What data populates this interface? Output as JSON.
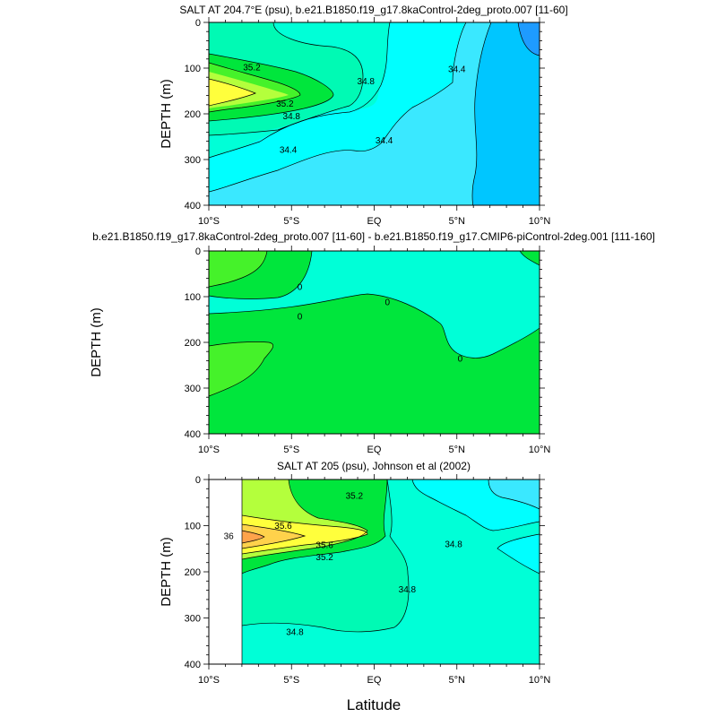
{
  "chart_data": [
    {
      "type": "contour",
      "title": "SALT AT 204.7°E (psu), b.e21.B1850.f19_g17.8kaControl-2deg_proto.007 [11-60]",
      "ylabel": "DEPTH (m)",
      "xlabel": "",
      "x_ticks": [
        "10°S",
        "5°S",
        "EQ",
        "5°N",
        "10°N"
      ],
      "y_ticks": [
        "0",
        "100",
        "200",
        "300",
        "400"
      ],
      "xlim": [
        -10,
        10
      ],
      "ylim": [
        0,
        400
      ],
      "contour_labels": [
        {
          "text": "35.2",
          "lat": -7.4,
          "depth": 98
        },
        {
          "text": "35.2",
          "lat": -5.4,
          "depth": 177
        },
        {
          "text": "34.8",
          "lat": -5.0,
          "depth": 205
        },
        {
          "text": "34.8",
          "lat": -0.5,
          "depth": 128
        },
        {
          "text": "34.4",
          "lat": -5.2,
          "depth": 278
        },
        {
          "text": "34.4",
          "lat": 0.6,
          "depth": 258
        },
        {
          "text": "34.4",
          "lat": 5.0,
          "depth": 102
        }
      ]
    },
    {
      "type": "contour",
      "title": "b.e21.B1850.f19_g17.8kaControl-2deg_proto.007 [11-60] - b.e21.B1850.f19_g17.CMIP6-piControl-2deg.001 [111-160]",
      "ylabel": "DEPTH (m)",
      "xlabel": "",
      "x_ticks": [
        "10°S",
        "5°S",
        "EQ",
        "5°N",
        "10°N"
      ],
      "y_ticks": [
        "0",
        "100",
        "200",
        "300",
        "400"
      ],
      "xlim": [
        -10,
        10
      ],
      "ylim": [
        0,
        400
      ],
      "contour_labels": [
        {
          "text": "0",
          "lat": -4.5,
          "depth": 78
        },
        {
          "text": "0",
          "lat": -4.5,
          "depth": 143
        },
        {
          "text": "0",
          "lat": 0.8,
          "depth": 112
        },
        {
          "text": "0",
          "lat": 5.2,
          "depth": 235
        }
      ]
    },
    {
      "type": "contour",
      "title": "SALT AT 205 (psu), Johnson et al (2002)",
      "ylabel": "DEPTH (m)",
      "xlabel": "Latitude",
      "x_ticks": [
        "10°S",
        "5°S",
        "EQ",
        "5°N",
        "10°N"
      ],
      "y_ticks": [
        "0",
        "100",
        "200",
        "300",
        "400"
      ],
      "xlim": [
        -10,
        10
      ],
      "ylim": [
        0,
        400
      ],
      "contour_labels": [
        {
          "text": "35.2",
          "lat": -1.2,
          "depth": 35
        },
        {
          "text": "35.6",
          "lat": -5.5,
          "depth": 100
        },
        {
          "text": "36",
          "lat": -8.8,
          "depth": 122
        },
        {
          "text": "35.6",
          "lat": -3.0,
          "depth": 142
        },
        {
          "text": "35.2",
          "lat": -3.0,
          "depth": 168
        },
        {
          "text": "34.8",
          "lat": 4.8,
          "depth": 140
        },
        {
          "text": "34.8",
          "lat": 2.0,
          "depth": 238
        },
        {
          "text": "34.8",
          "lat": -4.8,
          "depth": 330
        }
      ]
    }
  ],
  "colors": {
    "blue_deep": "#1e9bff",
    "blue": "#00c6ff",
    "cyan_light": "#3ae8ff",
    "cyan": "#00ffff",
    "aqua": "#00ffd7",
    "seafoam": "#00fab4",
    "green": "#00e63c",
    "lime": "#45f22a",
    "yellowgreen": "#b4ff3c",
    "yellow": "#ffff3c",
    "gold": "#ffd24b",
    "orange": "#ffa34b"
  }
}
